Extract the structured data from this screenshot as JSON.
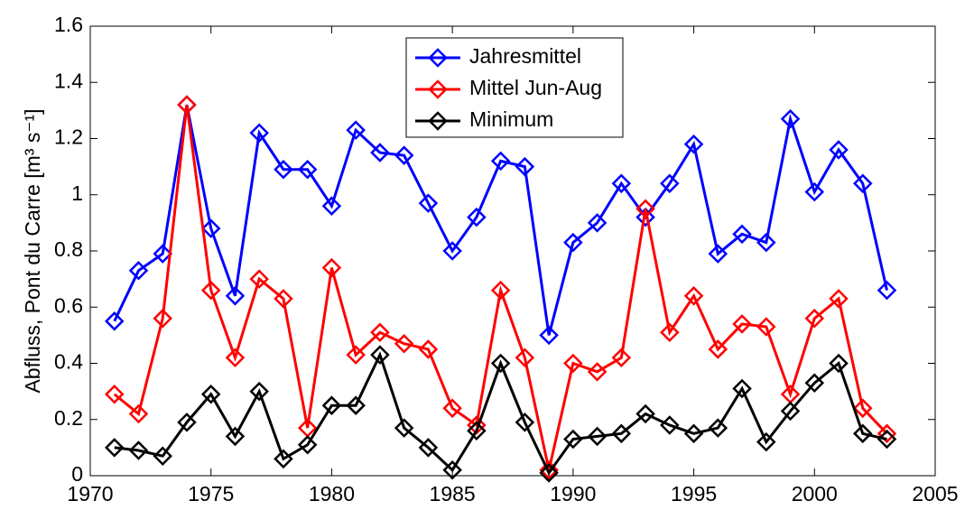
{
  "chart_data": {
    "type": "line",
    "y_label": "Abfluss, Pont du Carre [m³ s⁻¹]",
    "x": [
      1971,
      1972,
      1973,
      1974,
      1975,
      1976,
      1977,
      1978,
      1979,
      1980,
      1981,
      1982,
      1983,
      1984,
      1985,
      1986,
      1987,
      1988,
      1989,
      1990,
      1991,
      1992,
      1993,
      1994,
      1995,
      1996,
      1997,
      1998,
      1999,
      2000,
      2001,
      2002,
      2003
    ],
    "series": [
      {
        "name": "Jahresmittel",
        "color": "#0000ff",
        "values": [
          0.55,
          0.73,
          0.79,
          1.32,
          0.88,
          0.64,
          1.22,
          1.09,
          1.09,
          0.96,
          1.23,
          1.15,
          1.14,
          0.97,
          0.8,
          0.92,
          1.12,
          1.1,
          0.5,
          0.83,
          0.9,
          1.04,
          0.92,
          1.04,
          1.18,
          0.79,
          0.86,
          0.83,
          1.27,
          1.01,
          1.16,
          1.04,
          0.66
        ]
      },
      {
        "name": "Mittel Jun-Aug",
        "color": "#ff0000",
        "values": [
          0.29,
          0.22,
          0.56,
          1.32,
          0.66,
          0.42,
          0.7,
          0.63,
          0.17,
          0.74,
          0.43,
          0.51,
          0.47,
          0.45,
          0.24,
          0.18,
          0.66,
          0.42,
          0.02,
          0.4,
          0.37,
          0.42,
          0.95,
          0.51,
          0.64,
          0.45,
          0.54,
          0.53,
          0.29,
          0.56,
          0.63,
          0.24,
          0.15
        ]
      },
      {
        "name": "Minimum",
        "color": "#000000",
        "values": [
          0.1,
          0.09,
          0.07,
          0.19,
          0.29,
          0.14,
          0.3,
          0.06,
          0.11,
          0.25,
          0.25,
          0.43,
          0.17,
          0.1,
          0.02,
          0.16,
          0.4,
          0.19,
          0.01,
          0.13,
          0.14,
          0.15,
          0.22,
          0.18,
          0.15,
          0.17,
          0.31,
          0.12,
          0.23,
          0.33,
          0.4,
          0.15,
          0.13
        ]
      }
    ],
    "xlim": [
      1970,
      2005
    ],
    "xticks": [
      1970,
      1975,
      1980,
      1985,
      1990,
      1995,
      2000,
      2005
    ],
    "ylim": [
      0,
      1.6
    ],
    "yticks": [
      0,
      0.2,
      0.4,
      0.6,
      0.8,
      1,
      1.2,
      1.4,
      1.6
    ],
    "legend": "top-center",
    "grid": false
  }
}
